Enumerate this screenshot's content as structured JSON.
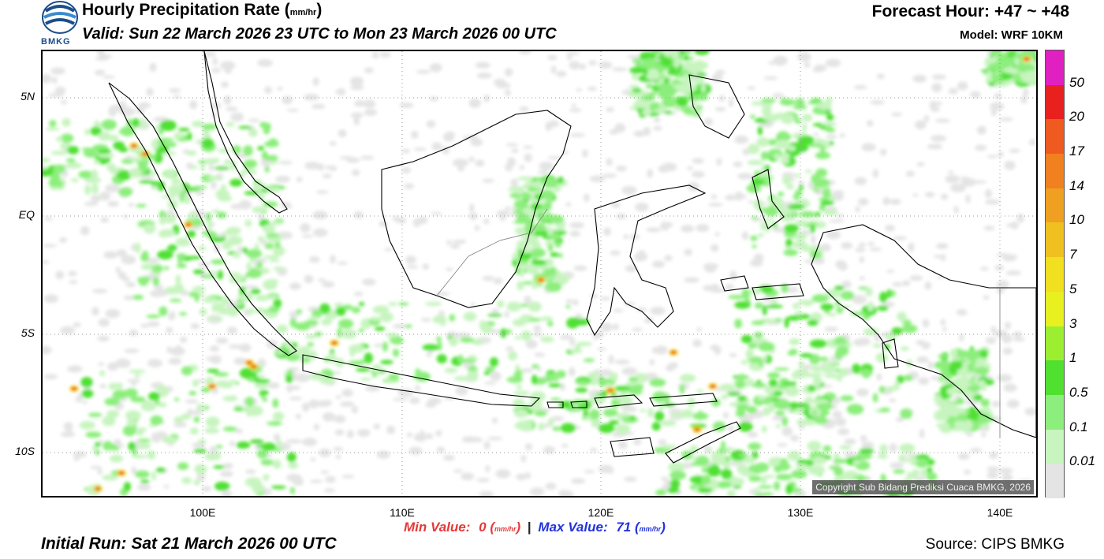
{
  "header": {
    "title": "Hourly Precipitation Rate (",
    "title_unit": "mm/hr",
    "title_close": ")",
    "valid": "Valid: Sun 22 March 2026 23 UTC to Mon 23 March 2026 00 UTC",
    "forecast_hour": "Forecast Hour: +47 ~ +48",
    "model": "Model: WRF 10KM",
    "logo_text": "BMKG"
  },
  "map": {
    "copyright": "Copyright Sub Bidang Prediksi Cuaca BMKG, 2026",
    "lat_labels": [
      "5N",
      "EQ",
      "5S",
      "10S"
    ],
    "lon_labels": [
      "100E",
      "110E",
      "120E",
      "130E",
      "140E"
    ]
  },
  "footer": {
    "min_label": "Min Value:",
    "min_value": "0",
    "max_label": "Max Value:",
    "max_value": "71",
    "unit": "mm/hr",
    "separator": "|",
    "initial_run": "Initial Run: Sat 21 March 2026 00 UTC",
    "source": "Source: CIPS BMKG"
  },
  "colorbar": {
    "labels": [
      "50",
      "20",
      "17",
      "14",
      "10",
      "7",
      "5",
      "3",
      "1",
      "0.5",
      "0.1",
      "0.01"
    ],
    "colors": [
      "#e020c0",
      "#e8201e",
      "#ee5a20",
      "#f08020",
      "#f0a020",
      "#f0c020",
      "#f0e020",
      "#e8f020",
      "#9cee30",
      "#50e030",
      "#8cee7c",
      "#c8f4c0",
      "#e4e4e4"
    ]
  }
}
